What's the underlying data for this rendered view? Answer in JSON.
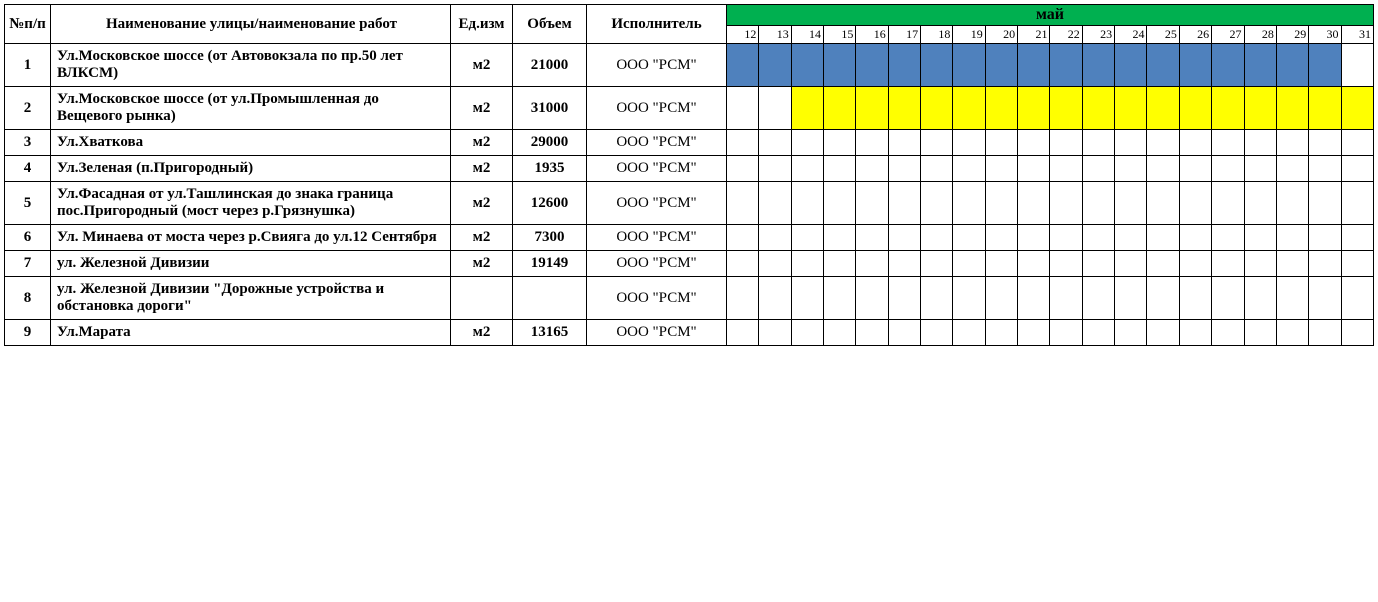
{
  "headers": {
    "num": "№п/п",
    "name": "Наименование улицы/наименование работ",
    "unit": "Ед.изм",
    "volume": "Объем",
    "executor": "Исполнитель",
    "month": "май"
  },
  "days": [
    12,
    13,
    14,
    15,
    16,
    17,
    18,
    19,
    20,
    21,
    22,
    23,
    24,
    25,
    26,
    27,
    28,
    29,
    30,
    31
  ],
  "colors": {
    "month_bg": "#00b050",
    "bar_blue": "#4f81bd",
    "bar_yellow": "#ffff00",
    "border": "#000000"
  },
  "rows": [
    {
      "num": "1",
      "name": "Ул.Московское шоссе (от Автовокзала по пр.50 лет ВЛКСМ)",
      "unit": "м2",
      "volume": "21000",
      "executor": "ООО \"РСМ\"",
      "bar": {
        "from": 12,
        "to": 30,
        "color": "#4f81bd"
      }
    },
    {
      "num": "2",
      "name": "Ул.Московское шоссе (от ул.Промышленная до Вещевого рынка)",
      "unit": "м2",
      "volume": "31000",
      "executor": "ООО \"РСМ\"",
      "bar": {
        "from": 14,
        "to": 31,
        "color": "#ffff00"
      }
    },
    {
      "num": "3",
      "name": "Ул.Хваткова",
      "unit": "м2",
      "volume": "29000",
      "executor": "ООО \"РСМ\"",
      "bar": null
    },
    {
      "num": "4",
      "name": "Ул.Зеленая (п.Пригородный)",
      "unit": "м2",
      "volume": "1935",
      "executor": "ООО \"РСМ\"",
      "bar": null
    },
    {
      "num": "5",
      "name": "Ул.Фасадная от ул.Ташлинская до знака граница пос.Пригородный (мост через р.Грязнушка)",
      "unit": "м2",
      "volume": "12600",
      "executor": "ООО \"РСМ\"",
      "bar": null
    },
    {
      "num": "6",
      "name": "Ул. Минаева от моста через р.Свияга до ул.12 Сентября",
      "unit": "м2",
      "volume": "7300",
      "executor": "ООО \"РСМ\"",
      "bar": null
    },
    {
      "num": "7",
      "name": "ул. Железной Дивизии",
      "unit": "м2",
      "volume": "19149",
      "executor": "ООО \"РСМ\"",
      "bar": null
    },
    {
      "num": "8",
      "name": "ул. Железной Дивизии \"Дорожные устройства и обстановка дороги\"",
      "unit": "",
      "volume": "",
      "executor": "ООО \"РСМ\"",
      "bar": null
    },
    {
      "num": "9",
      "name": "Ул.Марата",
      "unit": "м2",
      "volume": "13165",
      "executor": "ООО \"РСМ\"",
      "bar": null
    }
  ]
}
